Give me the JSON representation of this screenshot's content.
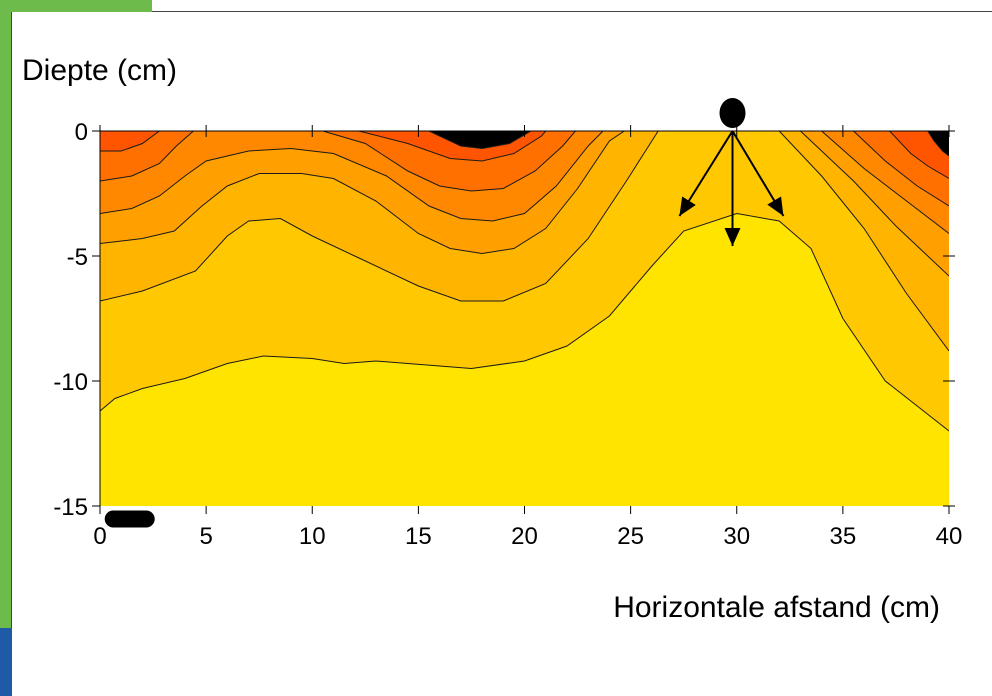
{
  "colors": {
    "accent_green": "#6dbb4a",
    "accent_blue": "#1f5aa6",
    "levels": [
      "#ffe400",
      "#ffc800",
      "#ffb400",
      "#ffa000",
      "#ff8800",
      "#ff7000",
      "#ff5500"
    ]
  },
  "chart_data": {
    "type": "contour",
    "title": "",
    "xlabel": "Horizontale afstand (cm)",
    "ylabel": "Diepte (cm)",
    "xlim": [
      0,
      40
    ],
    "ylim": [
      -15,
      0
    ],
    "xticks": [
      "0",
      "5",
      "10",
      "15",
      "20",
      "25",
      "30",
      "35",
      "40"
    ],
    "yticks": [
      "0",
      "-5",
      "-10",
      "-15"
    ],
    "contours": [
      {
        "level": 1,
        "points": [
          [
            0,
            -11.2
          ],
          [
            0.7,
            -10.7
          ],
          [
            2,
            -10.3
          ],
          [
            4,
            -9.9
          ],
          [
            6,
            -9.3
          ],
          [
            7.7,
            -9.0
          ],
          [
            10,
            -9.1
          ],
          [
            11.5,
            -9.3
          ],
          [
            13,
            -9.2
          ],
          [
            16,
            -9.4
          ],
          [
            17.5,
            -9.5
          ],
          [
            20,
            -9.2
          ],
          [
            22,
            -8.6
          ],
          [
            24,
            -7.4
          ],
          [
            26,
            -5.4
          ],
          [
            27.5,
            -4.0
          ],
          [
            30,
            -3.3
          ],
          [
            32,
            -3.6
          ],
          [
            33.5,
            -4.7
          ],
          [
            35,
            -7.5
          ],
          [
            37,
            -10.0
          ],
          [
            38.5,
            -11.0
          ],
          [
            40,
            -12.0
          ]
        ]
      },
      {
        "level": 2,
        "points": [
          [
            0,
            -6.8
          ],
          [
            2,
            -6.4
          ],
          [
            4.5,
            -5.6
          ],
          [
            6,
            -4.2
          ],
          [
            7,
            -3.6
          ],
          [
            8.5,
            -3.5
          ],
          [
            10,
            -4.2
          ],
          [
            12,
            -5.0
          ],
          [
            15,
            -6.2
          ],
          [
            17,
            -6.8
          ],
          [
            19,
            -6.8
          ],
          [
            21,
            -6.1
          ],
          [
            23,
            -4.3
          ],
          [
            24.8,
            -2.0
          ],
          [
            26.3,
            0
          ],
          [
            28.7,
            0
          ],
          [
            30,
            0
          ]
        ]
      },
      {
        "level": 2,
        "points": [
          [
            32,
            0
          ],
          [
            34,
            -1.8
          ],
          [
            36,
            -3.9
          ],
          [
            38,
            -6.5
          ],
          [
            40,
            -8.8
          ]
        ]
      },
      {
        "level": 3,
        "points": [
          [
            0,
            -4.5
          ],
          [
            2,
            -4.3
          ],
          [
            3.5,
            -4.0
          ],
          [
            4.8,
            -3.0
          ],
          [
            6,
            -2.2
          ],
          [
            7.5,
            -1.7
          ],
          [
            9.5,
            -1.7
          ],
          [
            11,
            -1.9
          ],
          [
            13,
            -2.8
          ],
          [
            15,
            -4.1
          ],
          [
            16.5,
            -4.7
          ],
          [
            18,
            -4.9
          ],
          [
            19.5,
            -4.7
          ],
          [
            21,
            -3.9
          ],
          [
            22.5,
            -2.3
          ],
          [
            24,
            -0.4
          ],
          [
            24.7,
            0
          ]
        ]
      },
      {
        "level": 3,
        "points": [
          [
            33,
            0
          ],
          [
            35.5,
            -2.0
          ],
          [
            37.5,
            -3.8
          ],
          [
            40,
            -5.8
          ]
        ]
      },
      {
        "level": 4,
        "points": [
          [
            0,
            -3.3
          ],
          [
            1.5,
            -3.1
          ],
          [
            2.8,
            -2.6
          ],
          [
            4,
            -1.8
          ],
          [
            5,
            -1.2
          ],
          [
            7,
            -0.8
          ],
          [
            9,
            -0.7
          ],
          [
            11,
            -0.9
          ],
          [
            13.5,
            -1.8
          ],
          [
            15.5,
            -3.0
          ],
          [
            17,
            -3.5
          ],
          [
            18.5,
            -3.6
          ],
          [
            20,
            -3.3
          ],
          [
            21.5,
            -2.2
          ],
          [
            23,
            -0.6
          ],
          [
            23.7,
            0
          ]
        ]
      },
      {
        "level": 4,
        "points": [
          [
            34,
            0
          ],
          [
            36,
            -1.5
          ],
          [
            38,
            -2.8
          ],
          [
            40,
            -4.1
          ]
        ]
      },
      {
        "level": 5,
        "points": [
          [
            0,
            -2.0
          ],
          [
            1.5,
            -1.8
          ],
          [
            2.8,
            -1.3
          ],
          [
            3.6,
            -0.6
          ],
          [
            4.4,
            0
          ]
        ]
      },
      {
        "level": 5,
        "points": [
          [
            10.5,
            0
          ],
          [
            12.5,
            -0.5
          ],
          [
            14.5,
            -1.6
          ],
          [
            16,
            -2.2
          ],
          [
            17.5,
            -2.4
          ],
          [
            19,
            -2.3
          ],
          [
            20.5,
            -1.6
          ],
          [
            21.8,
            -0.6
          ],
          [
            22.4,
            0
          ]
        ]
      },
      {
        "level": 5,
        "points": [
          [
            35.5,
            0
          ],
          [
            37,
            -1.2
          ],
          [
            38.5,
            -2.2
          ],
          [
            40,
            -3.0
          ]
        ]
      },
      {
        "level": 6,
        "points": [
          [
            0,
            -0.8
          ],
          [
            1,
            -0.8
          ],
          [
            2,
            -0.5
          ],
          [
            2.8,
            0
          ]
        ]
      },
      {
        "level": 6,
        "points": [
          [
            12.2,
            0
          ],
          [
            14.5,
            -0.5
          ],
          [
            16.5,
            -1.1
          ],
          [
            18,
            -1.2
          ],
          [
            19.5,
            -0.9
          ],
          [
            20.8,
            -0.2
          ],
          [
            21,
            0
          ]
        ]
      },
      {
        "level": 6,
        "points": [
          [
            37.2,
            0
          ],
          [
            38.2,
            -0.9
          ],
          [
            39,
            -1.4
          ],
          [
            40,
            -1.9
          ]
        ]
      },
      {
        "level": 7,
        "points": [
          [
            15.5,
            0
          ],
          [
            17,
            -0.6
          ],
          [
            18,
            -0.7
          ],
          [
            19.3,
            -0.5
          ],
          [
            20.3,
            0
          ]
        ]
      },
      {
        "level": 7,
        "points": [
          [
            39,
            0
          ],
          [
            39.3,
            -0.4
          ],
          [
            39.7,
            -0.8
          ],
          [
            40,
            -1.0
          ]
        ]
      }
    ],
    "markers": [
      {
        "x": 29.8,
        "y": 0.6,
        "shape": "dot"
      },
      {
        "x": 1.4,
        "y": -15.5,
        "shape": "capsule"
      }
    ],
    "arrows": [
      {
        "from": [
          29.8,
          0
        ],
        "to": [
          27.3,
          -3.4
        ]
      },
      {
        "from": [
          29.8,
          0
        ],
        "to": [
          29.8,
          -4.6
        ]
      },
      {
        "from": [
          29.8,
          0
        ],
        "to": [
          32.2,
          -3.4
        ]
      }
    ]
  }
}
